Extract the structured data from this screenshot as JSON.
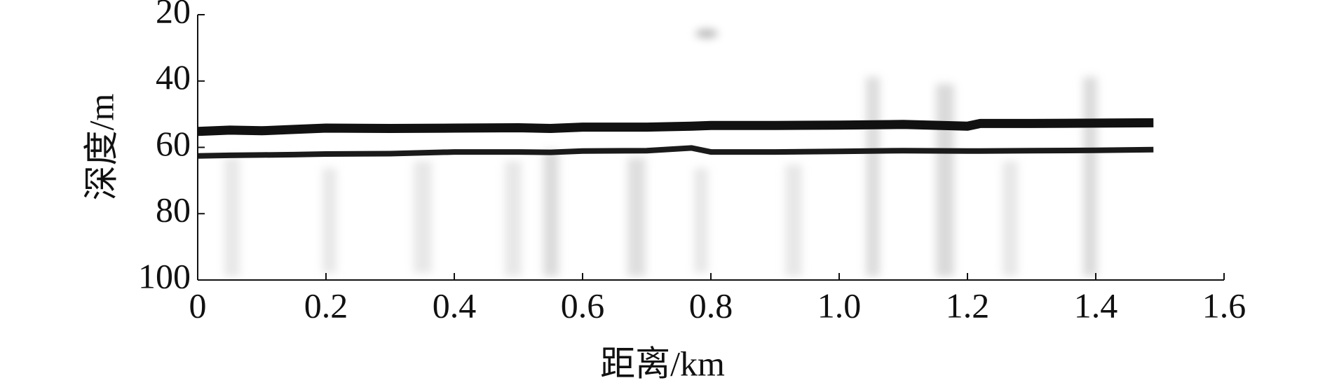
{
  "chart_data": {
    "type": "line",
    "x_label": "距离/km",
    "y_label": "深度/m",
    "x": [
      0,
      0.05,
      0.1,
      0.15,
      0.2,
      0.3,
      0.4,
      0.5,
      0.55,
      0.6,
      0.7,
      0.77,
      0.8,
      0.9,
      1.0,
      1.1,
      1.2,
      1.22,
      1.3,
      1.4,
      1.49
    ],
    "series": [
      {
        "color": "#111111",
        "values": [
          55.2,
          54.8,
          55,
          54.6,
          54.2,
          54.3,
          54.2,
          54.1,
          54.3,
          53.9,
          53.9,
          53.6,
          53.4,
          53.4,
          53.3,
          53.1,
          53.6,
          52.8,
          52.8,
          52.7,
          52.6
        ]
      },
      {
        "color": "#1a1a1a",
        "values": [
          62.6,
          62.4,
          62.3,
          62.2,
          62.0,
          61.9,
          61.4,
          61.4,
          61.5,
          61.1,
          61.0,
          60.2,
          61.4,
          61.4,
          61.2,
          61.0,
          61.1,
          61.1,
          61.0,
          60.9,
          60.7
        ]
      }
    ],
    "xlim": [
      0,
      1.6
    ],
    "xticks": [
      0,
      0.2,
      0.4,
      0.6,
      0.8,
      {
        "value": 1,
        "label": "1.0"
      },
      1.2,
      1.4,
      1.6
    ],
    "ylim": [
      20,
      100
    ],
    "yticks": [
      20,
      40,
      60,
      80,
      100
    ],
    "y_inverted": true,
    "grid": false
  }
}
